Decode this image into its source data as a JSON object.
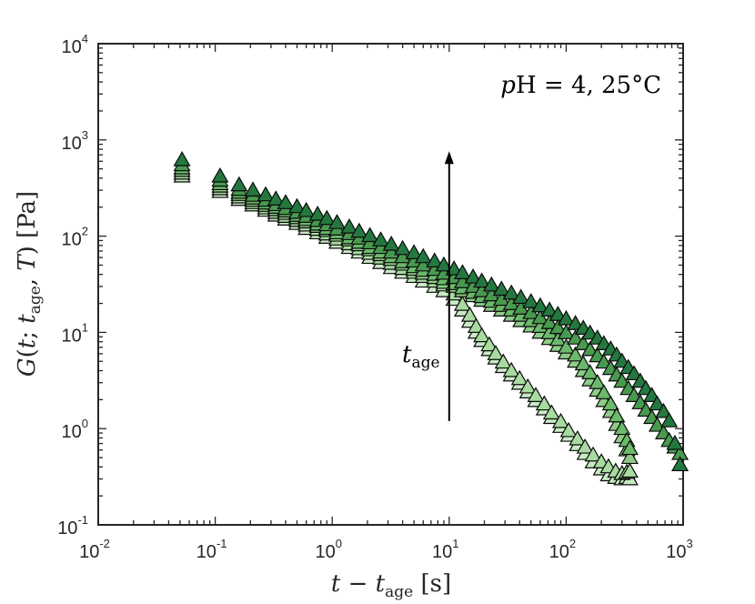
{
  "chart_data": {
    "type": "scatter",
    "x_scale": "log",
    "y_scale": "log",
    "xlim": [
      0.01,
      1000
    ],
    "ylim": [
      0.1,
      10000
    ],
    "x_ticks": [
      {
        "base": "10",
        "exp": "-2",
        "value": 0.01
      },
      {
        "base": "10",
        "exp": "-1",
        "value": 0.1
      },
      {
        "base": "10",
        "exp": "0",
        "value": 1
      },
      {
        "base": "10",
        "exp": "1",
        "value": 10
      },
      {
        "base": "10",
        "exp": "2",
        "value": 100
      },
      {
        "base": "10",
        "exp": "3",
        "value": 1000
      }
    ],
    "y_ticks": [
      {
        "base": "10",
        "exp": "-1",
        "value": 0.1
      },
      {
        "base": "10",
        "exp": "0",
        "value": 1
      },
      {
        "base": "10",
        "exp": "1",
        "value": 10
      },
      {
        "base": "10",
        "exp": "2",
        "value": 100
      },
      {
        "base": "10",
        "exp": "3",
        "value": 1000
      },
      {
        "base": "10",
        "exp": "4",
        "value": 10000
      }
    ],
    "xlabel": "t − t_age [s]",
    "ylabel": "G(t; t_age, T) [Pa]",
    "annotation": "pH = 4, 25°C",
    "arrow_label": "t_age",
    "arrow": {
      "x": 10,
      "y_from": 1.2,
      "y_to": 700
    },
    "marker": "triangle-up",
    "grid": false,
    "series": [
      {
        "color": "#c8ebc4",
        "x": [
          0.052,
          0.11,
          0.16,
          0.21,
          0.27,
          0.33,
          0.4,
          0.5,
          0.6,
          0.75,
          0.9,
          1.1,
          1.4,
          1.7,
          2.1,
          2.6,
          3.2,
          4,
          5,
          6,
          7.5,
          9,
          11,
          13,
          15,
          17,
          19,
          22,
          25,
          29,
          34,
          40,
          47,
          55,
          65,
          75,
          90,
          105,
          125,
          145,
          170,
          200,
          230,
          265,
          300,
          330,
          350
        ],
        "y": [
          420,
          290,
          240,
          210,
          185,
          165,
          150,
          135,
          120,
          108,
          97,
          86,
          76,
          68,
          60,
          53,
          47,
          42,
          38,
          34,
          30,
          27,
          22,
          17,
          13,
          10,
          8.2,
          6.6,
          5.4,
          4.4,
          3.6,
          2.95,
          2.4,
          1.95,
          1.6,
          1.3,
          1.05,
          0.85,
          0.68,
          0.55,
          0.45,
          0.38,
          0.33,
          0.31,
          0.3,
          0.31,
          0.3
        ]
      },
      {
        "color": "#a8dba0",
        "x": [
          0.052,
          0.11,
          0.16,
          0.21,
          0.27,
          0.33,
          0.4,
          0.5,
          0.6,
          0.75,
          0.9,
          1.1,
          1.4,
          1.7,
          2.1,
          2.6,
          3.2,
          4,
          5,
          6,
          7.5,
          9,
          11,
          13,
          15,
          17,
          19,
          22,
          25,
          29,
          34,
          40,
          47,
          55,
          65,
          75,
          90,
          105,
          125,
          145,
          170,
          200,
          230,
          265,
          300,
          330,
          350
        ],
        "y": [
          450,
          310,
          255,
          222,
          196,
          176,
          160,
          145,
          130,
          117,
          105,
          93,
          83,
          74,
          66,
          59,
          52,
          46,
          42,
          38,
          34,
          31,
          25,
          19.5,
          15,
          11.5,
          9.2,
          7.4,
          6,
          4.9,
          4,
          3.3,
          2.7,
          2.2,
          1.8,
          1.45,
          1.18,
          0.95,
          0.78,
          0.64,
          0.53,
          0.45,
          0.4,
          0.36,
          0.34,
          0.35,
          0.36
        ]
      },
      {
        "color": "#8dcc87",
        "x": [
          0.052,
          0.11,
          0.16,
          0.21,
          0.27,
          0.33,
          0.4,
          0.5,
          0.6,
          0.75,
          0.9,
          1.1,
          1.4,
          1.7,
          2.1,
          2.6,
          3.2,
          4,
          5,
          6,
          7.5,
          9,
          11,
          13,
          16,
          19,
          23,
          28,
          34,
          41,
          50,
          60,
          72,
          85,
          100,
          120,
          140,
          160,
          185,
          210,
          240,
          270,
          300,
          330,
          350
        ],
        "y": [
          480,
          330,
          270,
          235,
          208,
          188,
          172,
          155,
          140,
          126,
          114,
          102,
          91,
          81,
          72,
          64,
          57,
          51,
          45,
          41,
          37,
          33,
          30,
          27,
          24,
          21.5,
          19,
          17,
          15,
          13.2,
          11.6,
          10,
          8.6,
          7.3,
          6.1,
          5.0,
          4.0,
          3.2,
          2.5,
          1.95,
          1.5,
          1.1,
          0.82,
          0.6,
          0.5
        ]
      },
      {
        "color": "#6bb96a",
        "x": [
          0.052,
          0.11,
          0.16,
          0.21,
          0.27,
          0.33,
          0.4,
          0.5,
          0.6,
          0.75,
          0.9,
          1.1,
          1.4,
          1.7,
          2.1,
          2.6,
          3.2,
          4,
          5,
          6,
          7.5,
          9,
          11,
          13,
          16,
          19,
          23,
          28,
          34,
          41,
          50,
          60,
          72,
          85,
          100,
          120,
          140,
          160,
          185,
          210,
          240,
          270,
          300,
          330,
          350
        ],
        "y": [
          510,
          350,
          285,
          248,
          220,
          199,
          182,
          164,
          148,
          133,
          120,
          108,
          96,
          86,
          76,
          68,
          61,
          54,
          48,
          44,
          40,
          36,
          32,
          29,
          26,
          23.5,
          21,
          19,
          17,
          15,
          13.2,
          11.5,
          9.9,
          8.4,
          7.0,
          5.8,
          4.7,
          3.8,
          3.0,
          2.35,
          1.8,
          1.35,
          1.0,
          0.75,
          0.62
        ]
      },
      {
        "color": "#489a4f",
        "x": [
          0.052,
          0.11,
          0.16,
          0.21,
          0.27,
          0.33,
          0.4,
          0.5,
          0.6,
          0.75,
          0.9,
          1.1,
          1.4,
          1.7,
          2.1,
          2.6,
          3.2,
          4,
          5,
          6,
          7.5,
          9,
          11,
          13,
          16,
          19,
          23,
          28,
          34,
          41,
          50,
          60,
          72,
          85,
          100,
          120,
          140,
          160,
          185,
          210,
          240,
          270,
          300,
          340,
          380,
          430,
          480,
          540,
          600,
          680,
          760,
          850,
          940
        ],
        "y": [
          550,
          380,
          305,
          265,
          235,
          212,
          193,
          176,
          160,
          145,
          131,
          118,
          106,
          95,
          85,
          76,
          68,
          61,
          55,
          50,
          45,
          41,
          37,
          33.5,
          30,
          27,
          24.5,
          22,
          19.8,
          17.8,
          16,
          14.2,
          12.6,
          11.2,
          9.9,
          8.7,
          7.6,
          6.6,
          5.7,
          4.9,
          4.2,
          3.6,
          3.1,
          2.6,
          2.2,
          1.85,
          1.55,
          1.3,
          1.08,
          0.9,
          0.75,
          0.64,
          0.55
        ]
      },
      {
        "color": "#24783f",
        "x": [
          0.052,
          0.11,
          0.16,
          0.21,
          0.27,
          0.33,
          0.4,
          0.5,
          0.6,
          0.75,
          0.9,
          1.1,
          1.4,
          1.7,
          2.1,
          2.6,
          3.2,
          4,
          5,
          6,
          7.5,
          9,
          11,
          13,
          16,
          19,
          23,
          28,
          34,
          41,
          50,
          60,
          72,
          85,
          100,
          120,
          140,
          160,
          185,
          210,
          240,
          270,
          300,
          340,
          380,
          430,
          480,
          540,
          600,
          680,
          760,
          850,
          940
        ],
        "y": [
          620,
          420,
          340,
          300,
          268,
          242,
          222,
          202,
          184,
          168,
          152,
          138,
          124,
          112,
          101,
          91,
          82,
          74,
          67,
          61,
          55,
          50,
          45.5,
          41.5,
          37.5,
          34,
          31,
          28,
          25.5,
          23,
          20.8,
          18.8,
          17,
          15.3,
          13.8,
          12.3,
          11,
          9.8,
          8.7,
          7.6,
          6.7,
          5.8,
          5.0,
          4.3,
          3.7,
          3.1,
          2.6,
          2.2,
          1.8,
          1.5,
          1.2,
          0.7,
          0.42
        ]
      }
    ]
  }
}
